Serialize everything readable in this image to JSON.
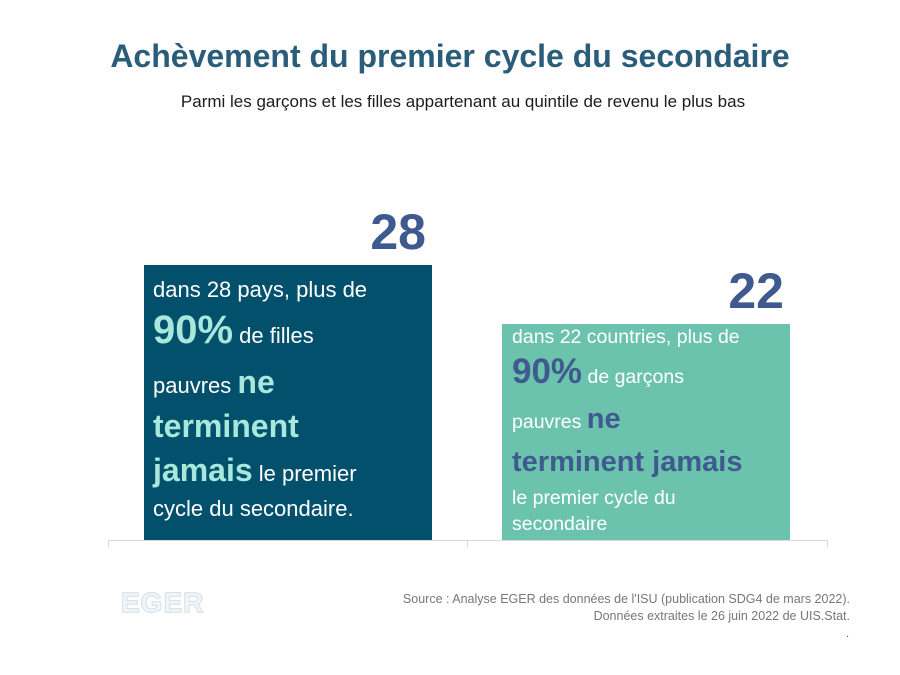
{
  "chart_data": {
    "type": "bar",
    "title": "Achèvement du premier cycle du secondaire",
    "subtitle": "Parmi les garçons et les filles appartenant au quintile de revenu le plus bas",
    "categories": [
      "filles",
      "garçons"
    ],
    "values": [
      28,
      22
    ],
    "ylim": [
      0,
      28
    ],
    "grid": false,
    "colors": [
      "#02506c",
      "#6cc3ad"
    ],
    "value_colors": [
      "#3f5a8f",
      "#3f5a8f"
    ],
    "bar_texts": [
      {
        "line1": "dans 28 pays, plus de",
        "big": "90%",
        "line2_rest": " de filles",
        "line3_start": "pauvres ",
        "hl1": "ne",
        "hl2": "terminent",
        "hl3": "jamais",
        "line_end": " le premier",
        "line_last": "cycle du secondaire."
      },
      {
        "line1": "dans 22 countries, plus de",
        "big": "90%",
        "line2_rest": " de garçons",
        "line3_start": "pauvres ",
        "hl1": "ne",
        "hl2": "terminent jamais",
        "line_end": "le premier cycle du",
        "line_last": "secondaire"
      }
    ]
  },
  "footer": {
    "logo_text": "EGER",
    "source_line1": "Source : Analyse EGER des données de l'ISU (publication SDG4 de mars 2022).",
    "source_line2": "Données extraites le 26 juin 2022 de UIS.Stat.",
    "source_line3": "."
  }
}
